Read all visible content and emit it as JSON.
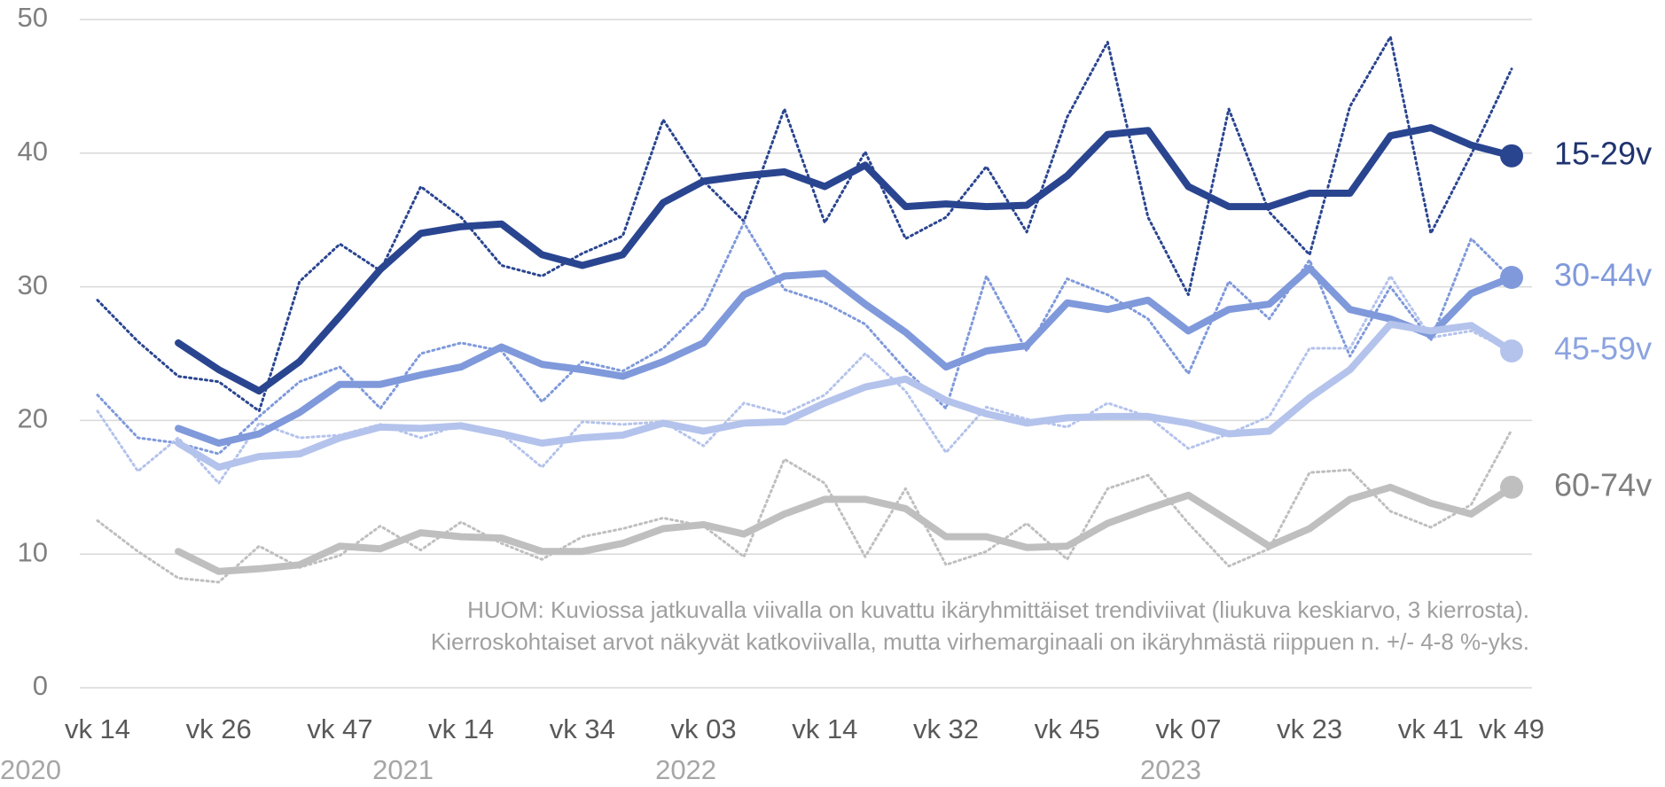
{
  "chart_data": {
    "type": "line",
    "categories": [
      "vk 14",
      null,
      null,
      "vk 26",
      null,
      null,
      "vk 47",
      null,
      null,
      "vk 14",
      null,
      null,
      "vk 34",
      null,
      null,
      "vk 03",
      null,
      null,
      "vk 14",
      null,
      null,
      "vk 32",
      null,
      null,
      "vk 45",
      null,
      null,
      "vk 07",
      null,
      null,
      "vk 23",
      null,
      null,
      "vk 41",
      null,
      "vk 49"
    ],
    "years": [
      "2020",
      null,
      null,
      null,
      null,
      null,
      null,
      null,
      "2021",
      null,
      null,
      null,
      null,
      null,
      null,
      "2022",
      null,
      null,
      null,
      null,
      null,
      null,
      null,
      null,
      null,
      null,
      null,
      "2023",
      null,
      null,
      null,
      null,
      null,
      null,
      null,
      null
    ],
    "ylim": [
      0,
      50
    ],
    "yticks": [
      0,
      10,
      20,
      30,
      40,
      50
    ],
    "grid": true,
    "annotation": [
      "HUOM: Kuviossa jatkuvalla viivalla on kuvattu ikäryhmittäiset trendiviivat (liukuva keskiarvo, 3 kierrosta).",
      "Kierroskohtaiset arvot näkyvät katkoviivalla, mutta virhemarginaali on ikäryhmästä riippuen n. +/- 4-8 %-yks."
    ],
    "series": [
      {
        "name": "15-29v",
        "color": "#2a4590",
        "label_color": "#1f3370",
        "values": [
          null,
          null,
          25.8,
          23.8,
          22.2,
          24.4,
          27.8,
          31.3,
          34.0,
          34.5,
          34.7,
          32.4,
          31.6,
          32.4,
          36.3,
          37.9,
          38.3,
          38.6,
          37.5,
          39.1,
          36.0,
          36.2,
          36.0,
          36.1,
          38.3,
          41.4,
          41.7,
          37.5,
          36.0,
          36.0,
          37.0,
          37.0,
          41.3,
          41.9,
          40.6,
          39.8
        ],
        "raw_values": [
          29.0,
          25.9,
          23.3,
          22.9,
          20.7,
          30.4,
          33.2,
          31.2,
          37.5,
          35.2,
          31.6,
          30.8,
          32.5,
          33.8,
          42.5,
          37.9,
          34.9,
          43.3,
          34.8,
          40.1,
          33.6,
          35.2,
          39.0,
          34.1,
          42.7,
          48.3,
          35.2,
          29.4,
          43.3,
          35.6,
          32.4,
          43.5,
          48.7,
          34.0,
          39.9,
          46.3
        ]
      },
      {
        "name": "30-44v",
        "color": "#7f99db",
        "label_color": "#7f99db",
        "values": [
          null,
          null,
          19.4,
          18.3,
          19.0,
          20.6,
          22.7,
          22.7,
          23.4,
          24.0,
          25.5,
          24.2,
          23.8,
          23.3,
          24.4,
          25.8,
          29.4,
          30.8,
          31.0,
          28.7,
          26.6,
          24.0,
          25.2,
          25.6,
          28.8,
          28.3,
          29.0,
          26.7,
          28.3,
          28.7,
          31.4,
          28.3,
          27.6,
          26.4,
          29.5,
          30.7
        ],
        "raw_values": [
          21.9,
          18.7,
          18.3,
          17.5,
          20.3,
          22.9,
          24.0,
          20.9,
          25.0,
          25.8,
          25.2,
          21.4,
          24.4,
          23.7,
          25.4,
          28.4,
          34.8,
          29.8,
          28.8,
          27.2,
          23.8,
          20.9,
          30.8,
          25.2,
          30.6,
          29.4,
          27.6,
          23.5,
          30.4,
          27.6,
          32.0,
          24.8,
          30.0,
          26.0,
          33.6,
          30.6
        ]
      },
      {
        "name": "45-59v",
        "color": "#b4c3ec",
        "label_color": "#8ca3e0",
        "values": [
          null,
          null,
          18.3,
          16.5,
          17.3,
          17.5,
          18.7,
          19.5,
          19.4,
          19.6,
          19.0,
          18.3,
          18.7,
          18.9,
          19.8,
          19.2,
          19.8,
          19.9,
          21.3,
          22.5,
          23.1,
          21.5,
          20.5,
          19.8,
          20.2,
          20.3,
          20.3,
          19.8,
          19.0,
          19.2,
          21.7,
          23.8,
          27.2,
          26.7,
          27.1,
          25.2
        ],
        "raw_values": [
          20.7,
          16.2,
          18.7,
          15.3,
          19.8,
          18.7,
          18.9,
          19.7,
          18.7,
          19.7,
          19.0,
          16.5,
          19.9,
          19.7,
          19.9,
          18.1,
          21.3,
          20.5,
          21.9,
          25.0,
          22.2,
          17.6,
          21.0,
          20.1,
          19.5,
          21.3,
          20.3,
          17.9,
          19.0,
          20.3,
          25.4,
          25.4,
          30.8,
          26.2,
          26.7,
          25.2
        ]
      },
      {
        "name": "60-74v",
        "color": "#bfbfbf",
        "label_color": "#7f7f7f",
        "values": [
          null,
          null,
          10.2,
          8.7,
          8.9,
          9.2,
          10.6,
          10.4,
          11.6,
          11.3,
          11.2,
          10.2,
          10.2,
          10.8,
          11.9,
          12.2,
          11.5,
          13.0,
          14.1,
          14.1,
          13.4,
          11.3,
          11.3,
          10.5,
          10.6,
          12.3,
          13.4,
          14.4,
          12.5,
          10.6,
          11.9,
          14.1,
          15.0,
          13.8,
          13.0,
          15.0
        ],
        "raw_values": [
          12.5,
          10.2,
          8.2,
          7.9,
          10.6,
          9.0,
          9.9,
          12.1,
          10.3,
          12.4,
          10.8,
          9.6,
          11.3,
          11.9,
          12.7,
          12.1,
          9.8,
          17.1,
          15.3,
          9.8,
          14.9,
          9.2,
          10.2,
          12.3,
          9.6,
          14.9,
          15.9,
          12.3,
          9.1,
          10.4,
          16.1,
          16.3,
          13.2,
          12.0,
          13.7,
          19.3
        ]
      }
    ]
  }
}
